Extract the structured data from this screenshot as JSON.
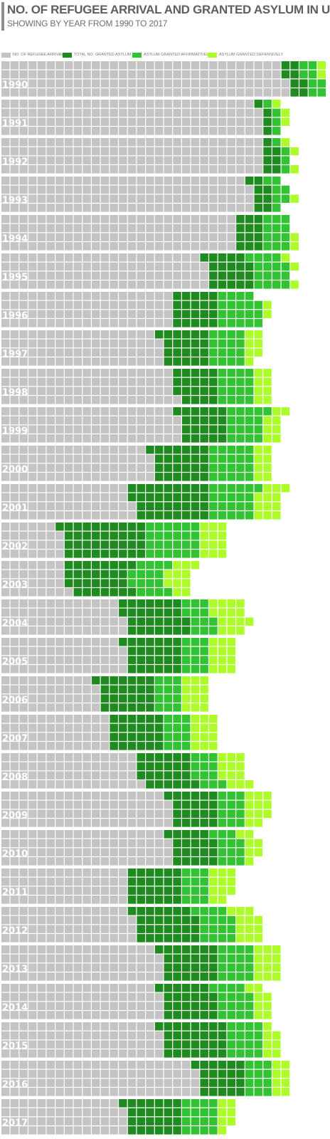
{
  "header": {
    "title": "NO. OF REFUGEE ARRIVAL AND GRANTED ASYLUM IN US",
    "subtitle": "SHOWING BY YEAR FROM 1990 TO 2017"
  },
  "legend": {
    "items": [
      {
        "label": "NO. OF REFUGEE ARRIVAL",
        "color": "#c4c4c4"
      },
      {
        "label": "TOTAL NO. GRANTED ASYLUM",
        "color": "#1f8a1f"
      },
      {
        "label": "ASYLUM GRANTED AFFIRMATIVELY",
        "color": "#33c233"
      },
      {
        "label": "ASYLUM GRANTED DEFENSIVELY",
        "color": "#adfc2a"
      }
    ]
  },
  "colors": {
    "refugee": "#c4c4c4",
    "total_asylum": "#1f8a1f",
    "affirmative": "#33c233",
    "defensive": "#adfc2a",
    "grid_line": "#ffffff"
  },
  "chart_data": {
    "type": "table",
    "unit_grid": "4 rows of squares per year block; each square represents a fixed count",
    "x_label": "",
    "years": [
      {
        "year": "1990",
        "refugee": [
          31,
          31,
          32,
          32
        ],
        "total": [
          2,
          2,
          2,
          2
        ],
        "affirmative": [
          2,
          2,
          2,
          2
        ],
        "defensive": [
          1,
          1,
          1,
          1
        ]
      },
      {
        "year": "1991",
        "refugee": [
          28,
          29,
          29,
          29
        ],
        "total": [
          1,
          1,
          1,
          1
        ],
        "affirmative": [
          1,
          1,
          1,
          1
        ],
        "defensive": [
          1,
          1,
          1,
          0
        ]
      },
      {
        "year": "1992",
        "refugee": [
          29,
          29,
          29,
          29
        ],
        "total": [
          1,
          2,
          2,
          2
        ],
        "affirmative": [
          1,
          1,
          1,
          1
        ],
        "defensive": [
          1,
          1,
          0,
          1
        ]
      },
      {
        "year": "1993",
        "refugee": [
          27,
          28,
          28,
          28
        ],
        "total": [
          2,
          2,
          2,
          2
        ],
        "affirmative": [
          2,
          2,
          2,
          1
        ],
        "defensive": [
          0,
          0,
          1,
          0
        ]
      },
      {
        "year": "1994",
        "refugee": [
          26,
          26,
          26,
          26
        ],
        "total": [
          3,
          3,
          3,
          3
        ],
        "affirmative": [
          3,
          3,
          3,
          3
        ],
        "defensive": [
          0,
          0,
          1,
          1
        ]
      },
      {
        "year": "1995",
        "refugee": [
          22,
          23,
          23,
          23
        ],
        "total": [
          5,
          5,
          5,
          5
        ],
        "affirmative": [
          4,
          4,
          4,
          4
        ],
        "defensive": [
          1,
          1,
          0,
          1
        ]
      },
      {
        "year": "1996",
        "refugee": [
          19,
          19,
          19,
          19
        ],
        "total": [
          5,
          5,
          5,
          5
        ],
        "affirmative": [
          4,
          5,
          5,
          5
        ],
        "defensive": [
          0,
          1,
          1,
          0
        ]
      },
      {
        "year": "1997",
        "refugee": [
          17,
          18,
          18,
          18
        ],
        "total": [
          6,
          5,
          5,
          5
        ],
        "affirmative": [
          4,
          4,
          4,
          4
        ],
        "defensive": [
          2,
          2,
          2,
          1
        ]
      },
      {
        "year": "1998",
        "refugee": [
          19,
          19,
          19,
          20
        ],
        "total": [
          5,
          5,
          5,
          4
        ],
        "affirmative": [
          4,
          4,
          4,
          4
        ],
        "defensive": [
          2,
          2,
          2,
          2
        ]
      },
      {
        "year": "1999",
        "refugee": [
          19,
          20,
          20,
          20
        ],
        "total": [
          6,
          5,
          5,
          5
        ],
        "affirmative": [
          5,
          4,
          4,
          4
        ],
        "defensive": [
          2,
          2,
          2,
          2
        ]
      },
      {
        "year": "2000",
        "refugee": [
          16,
          17,
          17,
          17
        ],
        "total": [
          7,
          6,
          6,
          6
        ],
        "affirmative": [
          5,
          5,
          5,
          5
        ],
        "defensive": [
          2,
          2,
          2,
          2
        ]
      },
      {
        "year": "2001",
        "refugee": [
          14,
          14,
          15,
          15
        ],
        "total": [
          9,
          9,
          8,
          8
        ],
        "affirmative": [
          6,
          5,
          5,
          5
        ],
        "defensive": [
          3,
          3,
          3,
          3
        ]
      },
      {
        "year": "2002",
        "refugee": [
          6,
          7,
          7,
          7
        ],
        "total": [
          10,
          9,
          9,
          9
        ],
        "affirmative": [
          6,
          6,
          6,
          6
        ],
        "defensive": [
          3,
          3,
          3,
          3
        ]
      },
      {
        "year": "2003",
        "refugee": [
          7,
          7,
          7,
          8
        ],
        "total": [
          8,
          7,
          7,
          7
        ],
        "affirmative": [
          4,
          4,
          4,
          4
        ],
        "defensive": [
          3,
          3,
          3,
          2
        ]
      },
      {
        "year": "2004",
        "refugee": [
          13,
          13,
          14,
          14
        ],
        "total": [
          7,
          7,
          7,
          7
        ],
        "affirmative": [
          3,
          3,
          3,
          3
        ],
        "defensive": [
          4,
          4,
          4,
          3
        ]
      },
      {
        "year": "2005",
        "refugee": [
          13,
          14,
          14,
          14
        ],
        "total": [
          7,
          6,
          6,
          6
        ],
        "affirmative": [
          3,
          3,
          3,
          3
        ],
        "defensive": [
          3,
          3,
          3,
          3
        ]
      },
      {
        "year": "2006",
        "refugee": [
          10,
          11,
          11,
          11
        ],
        "total": [
          7,
          6,
          6,
          6
        ],
        "affirmative": [
          3,
          3,
          3,
          3
        ],
        "defensive": [
          3,
          3,
          3,
          3
        ]
      },
      {
        "year": "2007",
        "refugee": [
          12,
          12,
          12,
          12
        ],
        "total": [
          6,
          6,
          6,
          6
        ],
        "affirmative": [
          3,
          3,
          3,
          3
        ],
        "defensive": [
          3,
          3,
          3,
          3
        ]
      },
      {
        "year": "2008",
        "refugee": [
          15,
          15,
          15,
          16
        ],
        "total": [
          6,
          6,
          6,
          6
        ],
        "affirmative": [
          3,
          3,
          3,
          3
        ],
        "defensive": [
          3,
          3,
          3,
          3
        ]
      },
      {
        "year": "2009",
        "refugee": [
          18,
          19,
          19,
          19
        ],
        "total": [
          6,
          5,
          5,
          5
        ],
        "affirmative": [
          3,
          3,
          3,
          3
        ],
        "defensive": [
          3,
          3,
          3,
          2
        ]
      },
      {
        "year": "2010",
        "refugee": [
          18,
          19,
          19,
          19
        ],
        "total": [
          5,
          5,
          5,
          5
        ],
        "affirmative": [
          3,
          3,
          3,
          3
        ],
        "defensive": [
          2,
          2,
          2,
          1
        ]
      },
      {
        "year": "2011",
        "refugee": [
          14,
          14,
          14,
          14
        ],
        "total": [
          6,
          6,
          6,
          6
        ],
        "affirmative": [
          3,
          3,
          3,
          3
        ],
        "defensive": [
          3,
          3,
          3,
          2
        ]
      },
      {
        "year": "2012",
        "refugee": [
          14,
          15,
          15,
          15
        ],
        "total": [
          7,
          7,
          7,
          7
        ],
        "affirmative": [
          4,
          4,
          4,
          4
        ],
        "defensive": [
          3,
          3,
          3,
          3
        ]
      },
      {
        "year": "2013",
        "refugee": [
          17,
          18,
          18,
          18
        ],
        "total": [
          7,
          6,
          6,
          6
        ],
        "affirmative": [
          4,
          4,
          4,
          4
        ],
        "defensive": [
          3,
          3,
          3,
          3
        ]
      },
      {
        "year": "2014",
        "refugee": [
          17,
          18,
          18,
          18
        ],
        "total": [
          6,
          6,
          6,
          6
        ],
        "affirmative": [
          4,
          4,
          4,
          4
        ],
        "defensive": [
          2,
          2,
          2,
          2
        ]
      },
      {
        "year": "2015",
        "refugee": [
          17,
          18,
          18,
          18
        ],
        "total": [
          8,
          7,
          7,
          7
        ],
        "affirmative": [
          4,
          4,
          4,
          4
        ],
        "defensive": [
          1,
          2,
          2,
          2
        ]
      },
      {
        "year": "2016",
        "refugee": [
          21,
          22,
          22,
          22
        ],
        "total": [
          6,
          5,
          5,
          5
        ],
        "affirmative": [
          3,
          3,
          3,
          3
        ],
        "defensive": [
          2,
          2,
          2,
          2
        ]
      },
      {
        "year": "2017",
        "refugee": [
          13,
          14,
          14,
          14
        ],
        "total": [
          7,
          6,
          6,
          6
        ],
        "affirmative": [
          4,
          4,
          4,
          4
        ],
        "defensive": [
          2,
          2,
          2,
          1
        ]
      }
    ]
  }
}
